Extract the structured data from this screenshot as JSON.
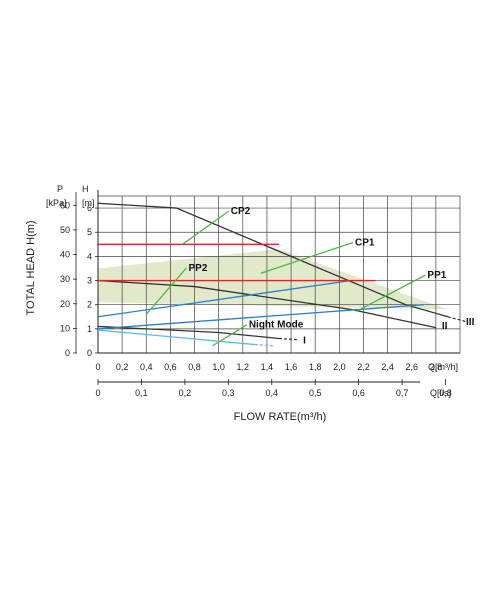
{
  "chart_data": {
    "type": "line",
    "colors": {
      "grid": "#444444",
      "curve_gray": "#333333",
      "curve_blue": "#2b7fc9",
      "curve_lightblue": "#5bbbe8",
      "curve_red": "#d42a2a",
      "leader": "#4cba3c",
      "fill": "#dfe8c8"
    },
    "y_axis_h": {
      "symbol": "H",
      "unit": "[m]",
      "ticks": [
        "0",
        "1",
        "2",
        "3",
        "4",
        "5",
        "6"
      ],
      "ylim": [
        0,
        6.5
      ]
    },
    "y_axis_p": {
      "symbol": "P",
      "unit": "[kPa]",
      "ticks": [
        "0",
        "10",
        "20",
        "30",
        "40",
        "50",
        "60"
      ]
    },
    "ylabel": "TOTAL HEAD H(m)",
    "x_axis_q1": {
      "label": "Q[m³/h]",
      "ticks": [
        "0",
        "0,2",
        "0,4",
        "0,6",
        "0,8",
        "1,0",
        "1,2",
        "1,4",
        "1,6",
        "1,8",
        "2,0",
        "2,2",
        "2,4",
        "2,6",
        "2,8"
      ],
      "xlim": [
        0,
        3.0
      ]
    },
    "x_axis_q2": {
      "label": "Q[l/s]",
      "ticks": [
        "0",
        "0,1",
        "0,2",
        "0,3",
        "0,4",
        "0,5",
        "0,6",
        "0,7",
        "0,8"
      ]
    },
    "xlabel": "FLOW RATE(m³/h)",
    "shaded_region": [
      [
        0,
        2.1
      ],
      [
        0,
        3.5
      ],
      [
        1.5,
        4.3
      ],
      [
        2.9,
        1.8
      ],
      [
        0,
        2.1
      ]
    ],
    "series": [
      {
        "name": "III",
        "color": "curve_gray",
        "points": [
          [
            0,
            6.2
          ],
          [
            0.65,
            6.0
          ],
          [
            2.55,
            2.0
          ],
          [
            2.9,
            1.5
          ]
        ],
        "dashed_tail": [
          [
            2.9,
            1.5
          ],
          [
            3.05,
            1.3
          ]
        ]
      },
      {
        "name": "II",
        "color": "curve_gray",
        "points": [
          [
            0,
            3.0
          ],
          [
            0.8,
            2.75
          ],
          [
            2.1,
            1.8
          ],
          [
            2.8,
            1.05
          ]
        ]
      },
      {
        "name": "I",
        "color": "curve_gray",
        "points": [
          [
            0,
            1.1
          ],
          [
            1.0,
            0.85
          ],
          [
            1.5,
            0.6
          ]
        ],
        "dashed_tail": [
          [
            1.5,
            0.6
          ],
          [
            1.65,
            0.55
          ]
        ]
      },
      {
        "name": "",
        "color": "curve_blue",
        "points": [
          [
            0,
            1.5
          ],
          [
            2.1,
            3.0
          ]
        ]
      },
      {
        "name": "",
        "color": "curve_blue",
        "points": [
          [
            0,
            1.0
          ],
          [
            2.7,
            2.0
          ]
        ]
      },
      {
        "name": "",
        "color": "curve_lightblue",
        "points": [
          [
            0,
            0.95
          ],
          [
            1.3,
            0.35
          ]
        ],
        "dashed_tail": [
          [
            1.3,
            0.35
          ],
          [
            1.45,
            0.3
          ]
        ]
      },
      {
        "name": "",
        "color": "curve_red",
        "points": [
          [
            0,
            4.5
          ],
          [
            1.5,
            4.5
          ]
        ]
      },
      {
        "name": "",
        "color": "curve_red",
        "points": [
          [
            0,
            3.0
          ],
          [
            2.3,
            3.0
          ]
        ]
      }
    ],
    "labels": [
      {
        "text": "CP2",
        "at": [
          1.1,
          5.75
        ],
        "from": [
          0.7,
          4.5
        ]
      },
      {
        "text": "CP1",
        "at": [
          2.13,
          4.45
        ],
        "from": [
          1.35,
          3.3
        ]
      },
      {
        "text": "PP2",
        "at": [
          0.75,
          3.4
        ],
        "from": [
          0.4,
          1.6
        ]
      },
      {
        "text": "PP1",
        "at": [
          2.73,
          3.1
        ],
        "from": [
          2.15,
          1.75
        ]
      },
      {
        "text": "Night Mode",
        "at": [
          1.25,
          1.05
        ],
        "from": [
          0.95,
          0.3
        ]
      },
      {
        "text": "I",
        "at": [
          1.7,
          0.4
        ]
      },
      {
        "text": "II",
        "at": [
          2.85,
          1.0
        ]
      },
      {
        "text": "III",
        "at": [
          3.05,
          1.15
        ]
      }
    ]
  }
}
